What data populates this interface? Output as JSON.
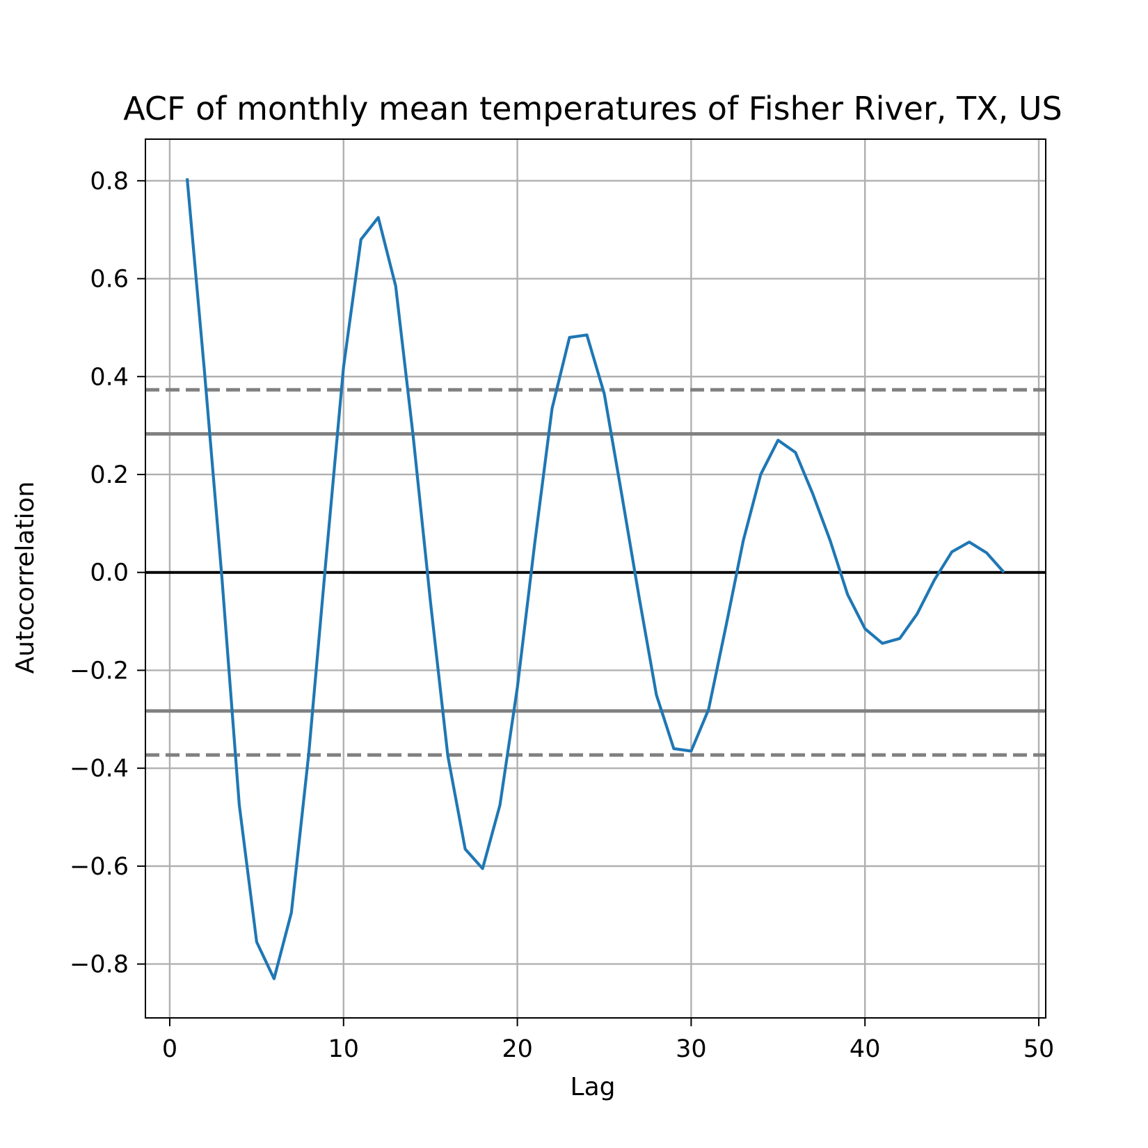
{
  "chart_data": {
    "type": "line",
    "title": "ACF of monthly mean temperatures of Fisher River, TX, US",
    "xlabel": "Lag",
    "ylabel": "Autocorrelation",
    "xlim": [
      -1.4,
      50.4
    ],
    "ylim": [
      -0.91,
      0.885
    ],
    "xticks": [
      0,
      10,
      20,
      30,
      40,
      50
    ],
    "xtick_labels": [
      "0",
      "10",
      "20",
      "30",
      "40",
      "50"
    ],
    "yticks": [
      -0.8,
      -0.6,
      -0.4,
      -0.2,
      0.0,
      0.2,
      0.4,
      0.6,
      0.8
    ],
    "ytick_labels": [
      "−0.8",
      "−0.6",
      "−0.4",
      "−0.2",
      "0.0",
      "0.2",
      "0.4",
      "0.6",
      "0.8"
    ],
    "grid": true,
    "series": [
      {
        "color": "#1f77b4",
        "x": [
          1,
          2,
          3,
          4,
          5,
          6,
          7,
          8,
          9,
          10,
          11,
          12,
          13,
          14,
          15,
          16,
          17,
          18,
          19,
          20,
          21,
          22,
          23,
          24,
          25,
          26,
          27,
          28,
          29,
          30,
          31,
          32,
          33,
          34,
          35,
          36,
          37,
          38,
          39,
          40,
          41,
          42,
          43,
          44,
          45,
          46,
          47,
          48
        ],
        "values": [
          0.805,
          0.41,
          -0.01,
          -0.475,
          -0.755,
          -0.83,
          -0.695,
          -0.37,
          0.03,
          0.42,
          0.68,
          0.725,
          0.585,
          0.28,
          -0.06,
          -0.375,
          -0.565,
          -0.605,
          -0.475,
          -0.235,
          0.06,
          0.335,
          0.48,
          0.485,
          0.365,
          0.16,
          -0.05,
          -0.25,
          -0.36,
          -0.365,
          -0.28,
          -0.11,
          0.065,
          0.2,
          0.27,
          0.245,
          0.16,
          0.065,
          -0.045,
          -0.115,
          -0.145,
          -0.135,
          -0.085,
          -0.015,
          0.042,
          0.062,
          0.04,
          0.0
        ]
      }
    ],
    "zero_line": {
      "y": 0.0,
      "color": "#000000"
    },
    "confidence_bands": [
      {
        "y": 0.283,
        "style": "solid",
        "color": "#808080"
      },
      {
        "y": -0.283,
        "style": "solid",
        "color": "#808080"
      },
      {
        "y": 0.373,
        "style": "dashed",
        "color": "#808080"
      },
      {
        "y": -0.373,
        "style": "dashed",
        "color": "#808080"
      }
    ]
  }
}
